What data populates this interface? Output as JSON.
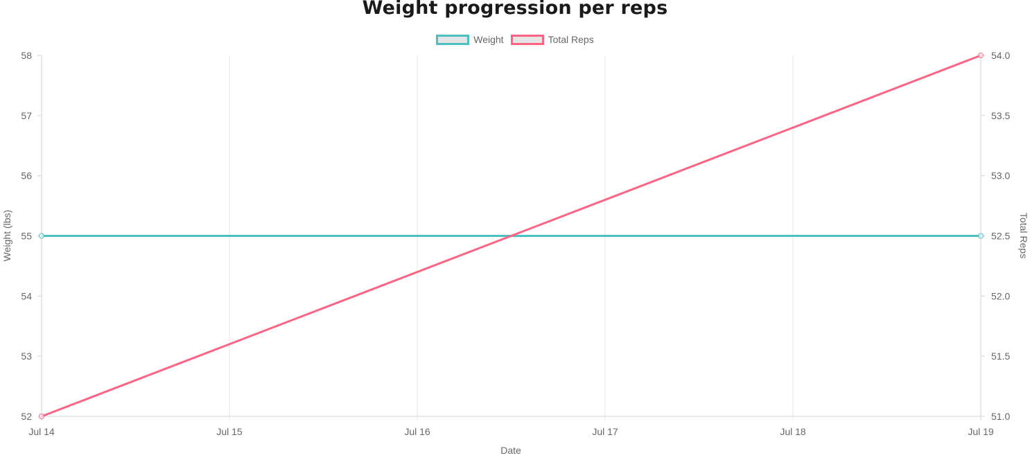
{
  "chart_data": {
    "type": "line",
    "title": "Weight progression per reps",
    "xlabel": "Date",
    "x": [
      "Jul 14",
      "Jul 15",
      "Jul 16",
      "Jul 17",
      "Jul 18",
      "Jul 19"
    ],
    "series": [
      {
        "name": "Weight",
        "axis": "left",
        "color": "#4bc0c0",
        "points": [
          {
            "x": "Jul 14",
            "y": 55
          },
          {
            "x": "Jul 19",
            "y": 55
          }
        ]
      },
      {
        "name": "Total Reps",
        "axis": "right",
        "color": "#ff6384",
        "points": [
          {
            "x": "Jul 14",
            "y": 51.0
          },
          {
            "x": "Jul 19",
            "y": 54.0
          }
        ]
      }
    ],
    "y_left": {
      "label": "Weight (lbs)",
      "ylim": [
        52,
        58
      ],
      "ticks": [
        "58",
        "57",
        "56",
        "55",
        "54",
        "53",
        "52"
      ]
    },
    "y_right": {
      "label": "Total Reps",
      "ylim": [
        51.0,
        54.0
      ],
      "ticks": [
        "54.0",
        "53.5",
        "53.0",
        "52.5",
        "52.0",
        "51.5",
        "51.0"
      ]
    },
    "grid": "vertical",
    "legend_position": "top-center"
  }
}
